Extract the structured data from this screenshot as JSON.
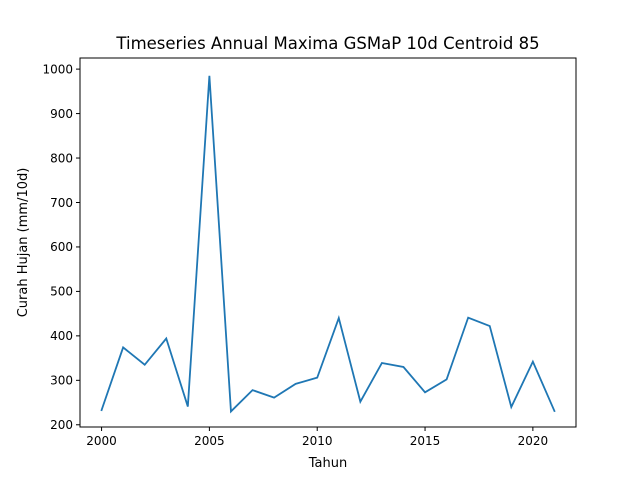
{
  "chart_data": {
    "type": "line",
    "title": "Timeseries Annual Maxima GSMaP 10d Centroid 85",
    "xlabel": "Tahun",
    "ylabel": "Curah Hujan (mm/10d)",
    "xlim": [
      1999,
      2022
    ],
    "ylim": [
      195,
      1025
    ],
    "x_ticks": [
      2000,
      2005,
      2010,
      2015,
      2020
    ],
    "y_ticks": [
      200,
      300,
      400,
      500,
      600,
      700,
      800,
      900,
      1000
    ],
    "grid": false,
    "legend": "none",
    "series": [
      {
        "color": "#1f77b4",
        "x": [
          2000,
          2001,
          2002,
          2003,
          2004,
          2005,
          2006,
          2007,
          2008,
          2009,
          2010,
          2011,
          2012,
          2013,
          2014,
          2015,
          2016,
          2017,
          2018,
          2019,
          2020,
          2021
        ],
        "y": [
          233,
          374,
          335,
          394,
          241,
          985,
          230,
          278,
          261,
          292,
          306,
          440,
          252,
          339,
          330,
          273,
          302,
          441,
          422,
          240,
          342,
          231
        ]
      }
    ]
  }
}
